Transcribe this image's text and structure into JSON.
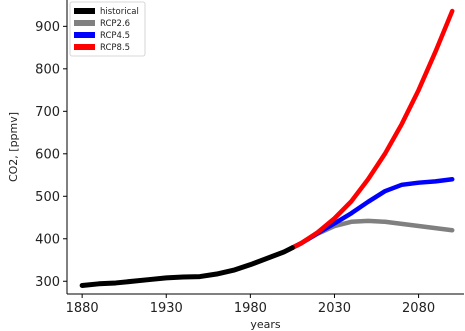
{
  "chart_data": {
    "type": "line",
    "title": "",
    "xlabel": "years",
    "ylabel": "CO2, [ppmv]",
    "xlim": [
      1871,
      2107
    ],
    "ylim": [
      270,
      962
    ],
    "xticks": [
      1880,
      1930,
      1980,
      2030,
      2080
    ],
    "xtick_labels": [
      "1880",
      "1930",
      "1980",
      "2030",
      "2080"
    ],
    "yticks": [
      300,
      400,
      500,
      600,
      700,
      800,
      900
    ],
    "ytick_labels": [
      "300",
      "400",
      "500",
      "600",
      "700",
      "800",
      "900"
    ],
    "grid": false,
    "legend_position": "top-left",
    "series": [
      {
        "name": "historical",
        "color": "#000000",
        "x": [
          1880,
          1890,
          1900,
          1910,
          1920,
          1930,
          1940,
          1950,
          1960,
          1970,
          1980,
          1990,
          2000,
          2005
        ],
        "y": [
          290,
          294,
          296,
          300,
          304,
          308,
          310,
          311,
          317,
          326,
          339,
          354,
          369,
          379
        ]
      },
      {
        "name": "RCP2.6",
        "color": "#808080",
        "x": [
          2005,
          2010,
          2020,
          2030,
          2040,
          2050,
          2060,
          2070,
          2080,
          2090,
          2100
        ],
        "y": [
          379,
          389,
          412,
          430,
          440,
          442,
          440,
          435,
          430,
          425,
          420
        ]
      },
      {
        "name": "RCP4.5",
        "color": "#0000ff",
        "x": [
          2005,
          2010,
          2020,
          2030,
          2040,
          2050,
          2060,
          2070,
          2080,
          2090,
          2100
        ],
        "y": [
          379,
          389,
          413,
          436,
          460,
          487,
          512,
          527,
          532,
          535,
          540
        ]
      },
      {
        "name": "RCP8.5",
        "color": "#ff0000",
        "x": [
          2005,
          2010,
          2020,
          2030,
          2040,
          2050,
          2060,
          2070,
          2080,
          2090,
          2100
        ],
        "y": [
          379,
          389,
          415,
          448,
          488,
          540,
          600,
          670,
          750,
          840,
          936
        ]
      }
    ]
  }
}
